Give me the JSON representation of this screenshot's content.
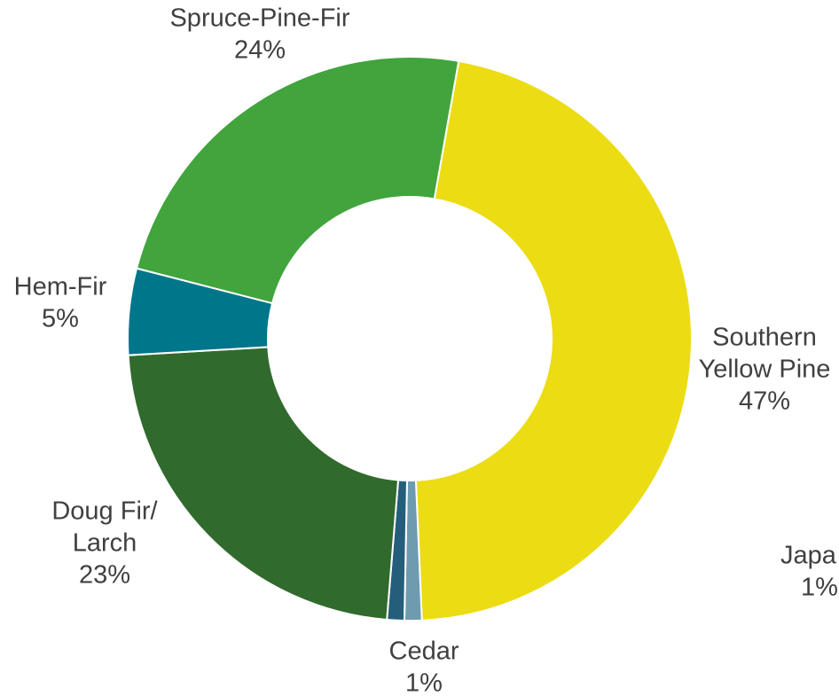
{
  "chart_data": {
    "type": "donut",
    "categories": [
      [
        "Southern",
        "Yellow Pine"
      ],
      [
        "Japa"
      ],
      [
        "Cedar"
      ],
      [
        "Doug Fir/",
        "Larch"
      ],
      [
        "Hem-Fir"
      ],
      [
        "Spruce-Pine-Fir"
      ]
    ],
    "values": [
      47,
      1,
      1,
      23,
      5,
      24
    ],
    "value_labels": [
      "47%",
      "1%",
      "1%",
      "23%",
      "5%",
      "24%"
    ],
    "colors": [
      "#ecdc14",
      "#6f9bb0",
      "#255e7a",
      "#316a2d",
      "#00768a",
      "#41a43c"
    ]
  }
}
